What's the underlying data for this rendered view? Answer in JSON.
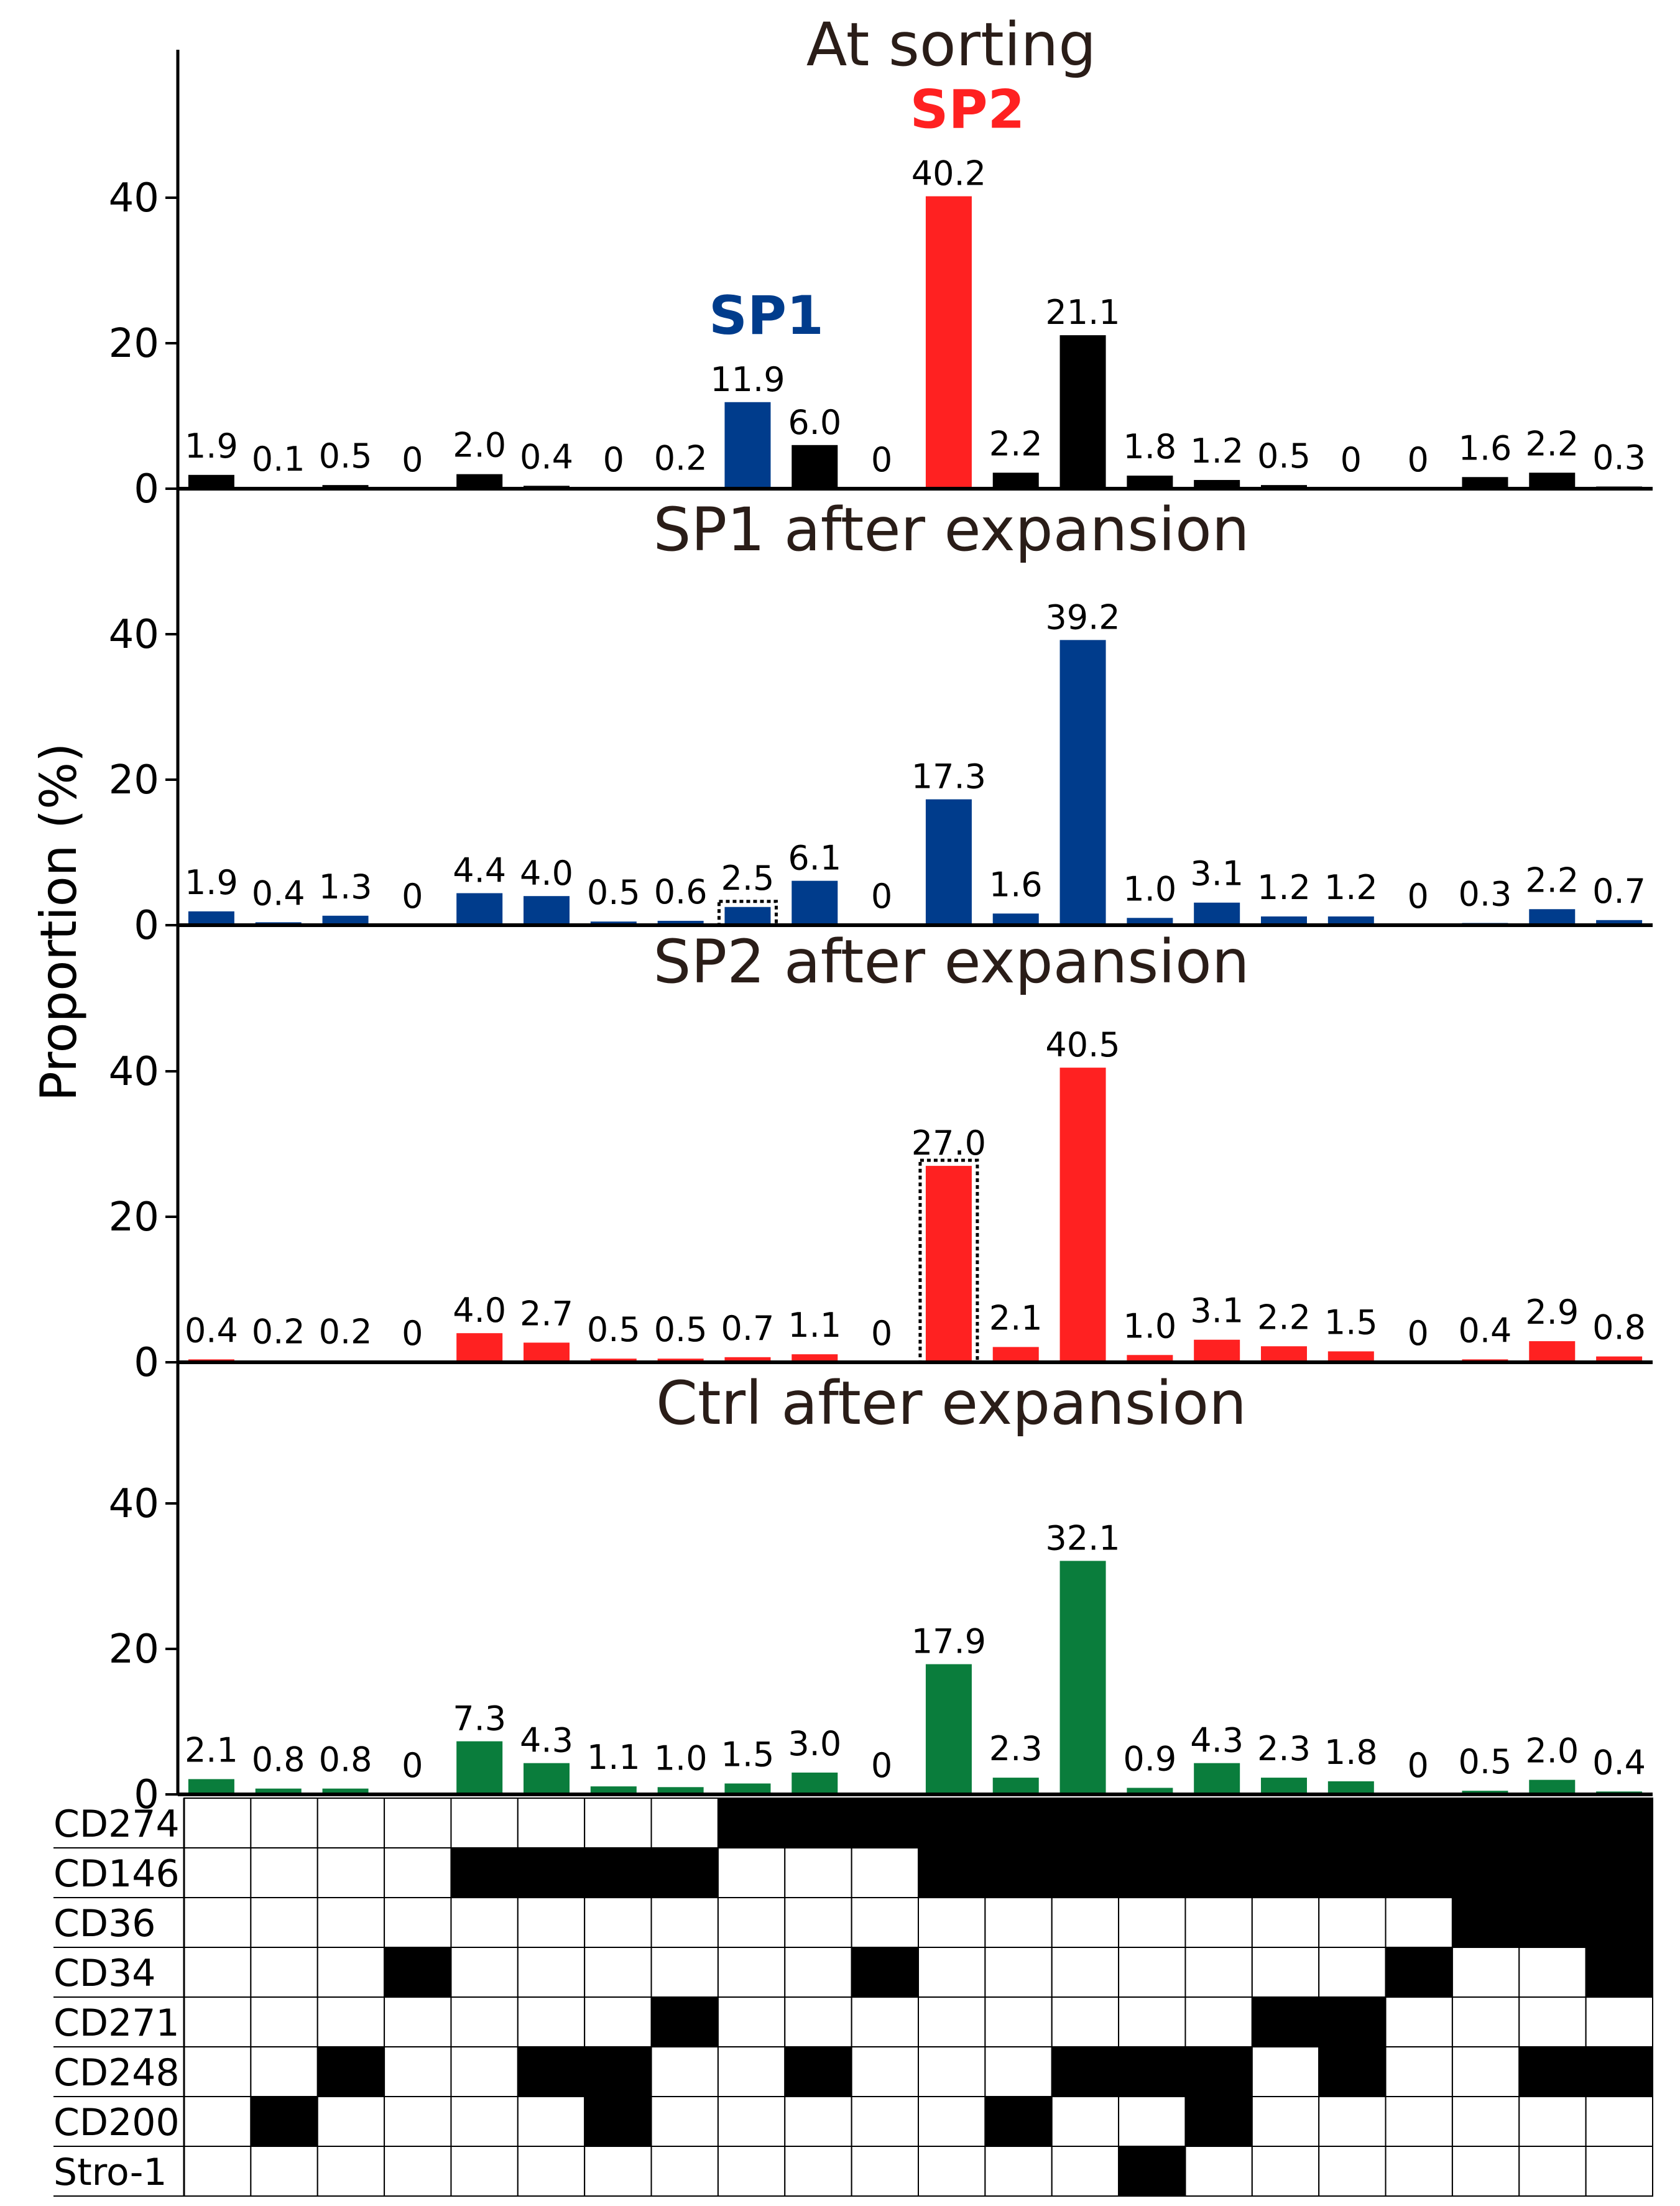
{
  "chart_data": {
    "type": "bar",
    "y_axis_label": "Proportion (%)",
    "ylim": [
      0,
      60
    ],
    "yticks": [
      0,
      20,
      40
    ],
    "grid": false,
    "colors": {
      "black": "#000000",
      "blue": "#003c8c",
      "red": "#ff2121",
      "green": "#0a7d3c",
      "axis": "#000000",
      "title_text": "#2a1d18"
    },
    "panels": [
      {
        "title": "At sorting",
        "values": [
          1.9,
          0.1,
          0.5,
          0,
          2.0,
          0.4,
          0,
          0.2,
          11.9,
          6.0,
          0,
          40.2,
          2.2,
          21.1,
          1.8,
          1.2,
          0.5,
          0,
          0,
          1.6,
          2.2,
          0.3
        ],
        "labels": [
          "1.9",
          "0.1",
          "0.5",
          "0",
          "2.0",
          "0.4",
          "0",
          "0.2",
          "11.9",
          "6.0",
          "0",
          "40.2",
          "2.2",
          "21.1",
          "1.8",
          "1.2",
          "0.5",
          "0",
          "0",
          "1.6",
          "2.2",
          "0.3"
        ],
        "bar_colors": [
          "black",
          "black",
          "black",
          "black",
          "black",
          "black",
          "black",
          "black",
          "blue",
          "black",
          "black",
          "red",
          "black",
          "black",
          "black",
          "black",
          "black",
          "black",
          "black",
          "black",
          "black",
          "black"
        ],
        "highlighted": [],
        "annotations": [
          {
            "text": "SP1",
            "category_index": 8,
            "color": "blue"
          },
          {
            "text": "SP2",
            "category_index": 11,
            "color": "red"
          }
        ]
      },
      {
        "title": "SP1 after expansion",
        "values": [
          1.9,
          0.4,
          1.3,
          0,
          4.4,
          4.0,
          0.5,
          0.6,
          2.5,
          6.1,
          0,
          17.3,
          1.6,
          39.2,
          1.0,
          3.1,
          1.2,
          1.2,
          0,
          0.3,
          2.2,
          0.7
        ],
        "labels": [
          "1.9",
          "0.4",
          "1.3",
          "0",
          "4.4",
          "4.0",
          "0.5",
          "0.6",
          "2.5",
          "6.1",
          "0",
          "17.3",
          "1.6",
          "39.2",
          "1.0",
          "3.1",
          "1.2",
          "1.2",
          "0",
          "0.3",
          "2.2",
          "0.7"
        ],
        "bar_colors": [
          "blue",
          "blue",
          "blue",
          "blue",
          "blue",
          "blue",
          "blue",
          "blue",
          "blue",
          "blue",
          "blue",
          "blue",
          "blue",
          "blue",
          "blue",
          "blue",
          "blue",
          "blue",
          "blue",
          "blue",
          "blue",
          "blue"
        ],
        "highlighted": [
          8
        ],
        "annotations": []
      },
      {
        "title": "SP2 after expansion",
        "values": [
          0.4,
          0.2,
          0.2,
          0,
          4.0,
          2.7,
          0.5,
          0.5,
          0.7,
          1.1,
          0,
          27.0,
          2.1,
          40.5,
          1.0,
          3.1,
          2.2,
          1.5,
          0,
          0.4,
          2.9,
          0.8
        ],
        "labels": [
          "0.4",
          "0.2",
          "0.2",
          "0",
          "4.0",
          "2.7",
          "0.5",
          "0.5",
          "0.7",
          "1.1",
          "0",
          "27.0",
          "2.1",
          "40.5",
          "1.0",
          "3.1",
          "2.2",
          "1.5",
          "0",
          "0.4",
          "2.9",
          "0.8"
        ],
        "bar_colors": [
          "red",
          "red",
          "red",
          "red",
          "red",
          "red",
          "red",
          "red",
          "red",
          "red",
          "red",
          "red",
          "red",
          "red",
          "red",
          "red",
          "red",
          "red",
          "red",
          "red",
          "red",
          "red"
        ],
        "highlighted": [
          11
        ],
        "annotations": []
      },
      {
        "title": "Ctrl after expansion",
        "values": [
          2.1,
          0.8,
          0.8,
          0,
          7.3,
          4.3,
          1.1,
          1.0,
          1.5,
          3.0,
          0,
          17.9,
          2.3,
          32.1,
          0.9,
          4.3,
          2.3,
          1.8,
          0,
          0.5,
          2.0,
          0.4
        ],
        "labels": [
          "2.1",
          "0.8",
          "0.8",
          "0",
          "7.3",
          "4.3",
          "1.1",
          "1.0",
          "1.5",
          "3.0",
          "0",
          "17.9",
          "2.3",
          "32.1",
          "0.9",
          "4.3",
          "2.3",
          "1.8",
          "0",
          "0.5",
          "2.0",
          "0.4"
        ],
        "bar_colors": [
          "green",
          "green",
          "green",
          "green",
          "green",
          "green",
          "green",
          "green",
          "green",
          "green",
          "green",
          "green",
          "green",
          "green",
          "green",
          "green",
          "green",
          "green",
          "green",
          "green",
          "green",
          "green"
        ],
        "highlighted": [],
        "annotations": []
      }
    ],
    "marker_matrix": {
      "markers": [
        "CD274",
        "CD146",
        "CD36",
        "CD34",
        "CD271",
        "CD248",
        "CD200",
        "Stro-1"
      ],
      "rows": [
        [
          0,
          0,
          0,
          0,
          0,
          0,
          0,
          0,
          1,
          1,
          1,
          1,
          1,
          1,
          1,
          1,
          1,
          1,
          1,
          1,
          1,
          1
        ],
        [
          0,
          0,
          0,
          0,
          1,
          1,
          1,
          1,
          0,
          0,
          0,
          1,
          1,
          1,
          1,
          1,
          1,
          1,
          1,
          1,
          1,
          1
        ],
        [
          0,
          0,
          0,
          0,
          0,
          0,
          0,
          0,
          0,
          0,
          0,
          0,
          0,
          0,
          0,
          0,
          0,
          0,
          0,
          1,
          1,
          1
        ],
        [
          0,
          0,
          0,
          1,
          0,
          0,
          0,
          0,
          0,
          0,
          1,
          0,
          0,
          0,
          0,
          0,
          0,
          0,
          1,
          0,
          0,
          1
        ],
        [
          0,
          0,
          0,
          0,
          0,
          0,
          0,
          1,
          0,
          0,
          0,
          0,
          0,
          0,
          0,
          0,
          1,
          1,
          0,
          0,
          0,
          0
        ],
        [
          0,
          0,
          1,
          0,
          0,
          1,
          1,
          0,
          0,
          1,
          0,
          0,
          0,
          1,
          1,
          1,
          0,
          1,
          0,
          0,
          1,
          1
        ],
        [
          0,
          1,
          0,
          0,
          0,
          0,
          1,
          0,
          0,
          0,
          0,
          0,
          1,
          0,
          0,
          1,
          0,
          0,
          0,
          0,
          0,
          0
        ],
        [
          0,
          0,
          0,
          0,
          0,
          0,
          0,
          0,
          0,
          0,
          0,
          0,
          0,
          0,
          1,
          0,
          0,
          0,
          0,
          0,
          0,
          0
        ]
      ]
    }
  }
}
